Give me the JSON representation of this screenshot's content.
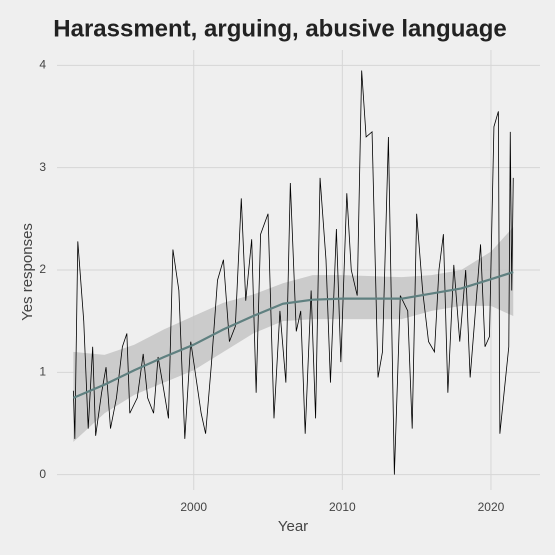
{
  "chart_data": {
    "type": "line",
    "title": "Harassment, arguing, abusive language",
    "x_label": "Year",
    "y_label": "Yes responses",
    "xlim": [
      1990.8,
      2023.3
    ],
    "ylim": [
      -0.15,
      4.15
    ],
    "xticks": [
      2000,
      2010,
      2020
    ],
    "yticks": [
      0,
      1,
      2,
      3,
      4
    ],
    "grid": true,
    "color": "#000000",
    "x": [
      1991.9,
      1992.0,
      1992.2,
      1992.6,
      1992.9,
      1993.2,
      1993.4,
      1993.8,
      1994.1,
      1994.4,
      1994.8,
      1995.2,
      1995.5,
      1995.7,
      1996.2,
      1996.6,
      1996.9,
      1997.3,
      1997.6,
      1997.9,
      1998.3,
      1998.6,
      1999.0,
      1999.4,
      1999.8,
      2000.2,
      2000.5,
      2000.8,
      2001.2,
      2001.6,
      2002.0,
      2002.4,
      2002.8,
      2003.2,
      2003.5,
      2003.9,
      2004.2,
      2004.5,
      2005.0,
      2005.4,
      2005.8,
      2006.2,
      2006.5,
      2006.9,
      2007.2,
      2007.5,
      2007.9,
      2008.2,
      2008.5,
      2008.9,
      2009.2,
      2009.6,
      2009.9,
      2010.3,
      2010.6,
      2011.0,
      2011.3,
      2011.6,
      2012.0,
      2012.4,
      2012.7,
      2013.1,
      2013.5,
      2013.9,
      2014.4,
      2014.7,
      2015.0,
      2015.4,
      2015.8,
      2016.2,
      2016.5,
      2016.8,
      2017.1,
      2017.5,
      2017.9,
      2018.3,
      2018.6,
      2018.9,
      2019.3,
      2019.6,
      2019.9,
      2020.2,
      2020.5,
      2020.6,
      2021.2,
      2021.3,
      2021.4,
      2021.5
    ],
    "values": [
      0.82,
      0.35,
      2.28,
      1.5,
      0.45,
      1.25,
      0.38,
      0.8,
      1.05,
      0.45,
      0.75,
      1.25,
      1.38,
      0.6,
      0.75,
      1.18,
      0.75,
      0.6,
      1.15,
      0.9,
      0.55,
      2.2,
      1.8,
      0.35,
      1.3,
      0.9,
      0.6,
      0.4,
      1.1,
      1.9,
      2.1,
      1.3,
      1.45,
      2.7,
      1.7,
      2.3,
      0.8,
      2.35,
      2.55,
      0.55,
      1.6,
      0.9,
      2.85,
      1.4,
      1.6,
      0.4,
      1.8,
      0.55,
      2.9,
      2.1,
      0.9,
      2.4,
      1.1,
      2.75,
      2.0,
      1.75,
      3.95,
      3.3,
      3.35,
      0.95,
      1.2,
      3.3,
      0.0,
      1.75,
      1.6,
      0.45,
      2.55,
      1.8,
      1.3,
      1.2,
      2.0,
      2.35,
      0.8,
      2.05,
      1.3,
      2.0,
      0.95,
      1.5,
      2.25,
      1.25,
      1.35,
      3.4,
      3.55,
      0.4,
      1.25,
      3.35,
      1.8,
      2.9
    ],
    "smooth": {
      "color": "#5f8080",
      "band_color": "#c4c4c4",
      "x": [
        1991.9,
        1994,
        1996,
        1998,
        2000,
        2002,
        2004,
        2006,
        2008,
        2010,
        2012,
        2014,
        2016,
        2018,
        2020,
        2021.5
      ],
      "values": [
        0.75,
        0.88,
        1.02,
        1.15,
        1.27,
        1.42,
        1.55,
        1.67,
        1.71,
        1.72,
        1.72,
        1.72,
        1.77,
        1.82,
        1.91,
        1.98
      ],
      "lower": [
        0.32,
        0.6,
        0.78,
        0.9,
        1.02,
        1.2,
        1.38,
        1.5,
        1.52,
        1.52,
        1.52,
        1.52,
        1.6,
        1.65,
        1.65,
        1.55
      ],
      "upper": [
        1.2,
        1.17,
        1.27,
        1.42,
        1.55,
        1.68,
        1.76,
        1.87,
        1.95,
        1.95,
        1.94,
        1.93,
        1.95,
        2.0,
        2.18,
        2.42
      ]
    }
  }
}
